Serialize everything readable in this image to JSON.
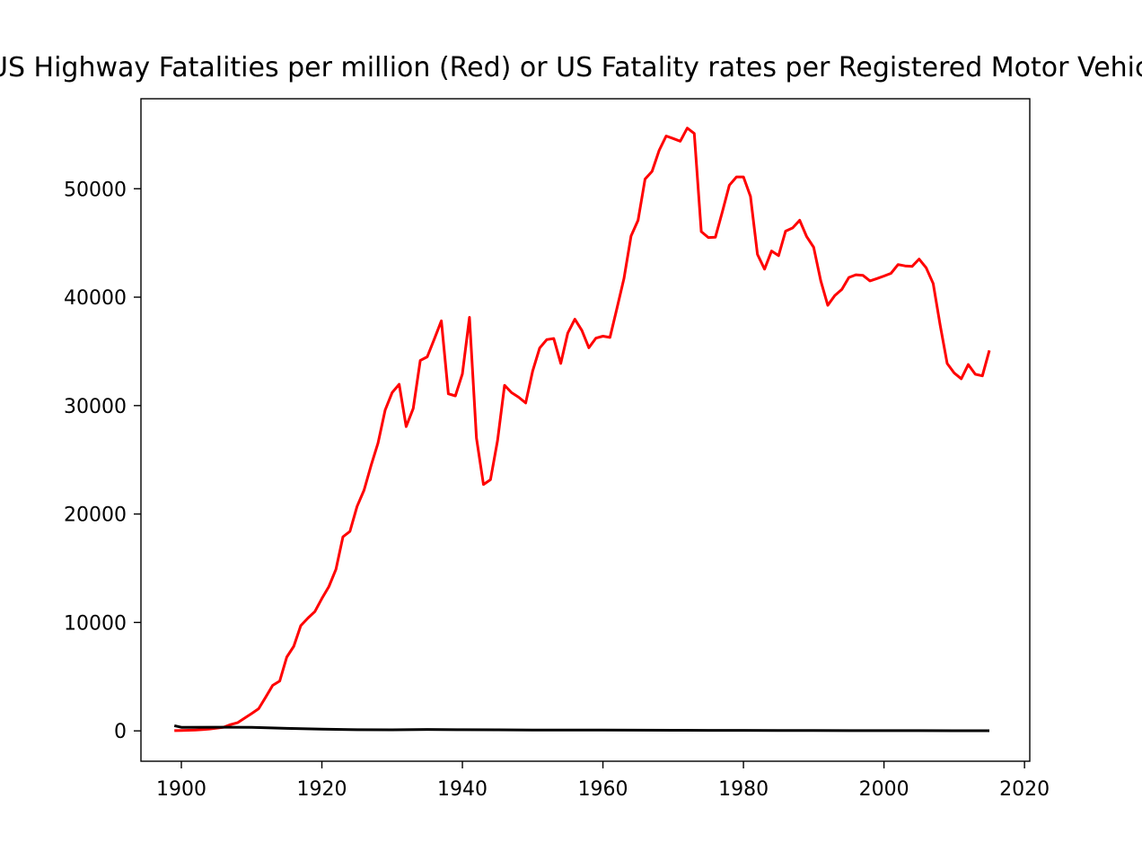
{
  "chart_data": {
    "type": "line",
    "title": "US Highway Fatalities per million (Red) or US Fatality rates per Registered Motor Vehicle (Black)",
    "xlim": [
      1894.25,
      2020.75
    ],
    "ylim": [
      -2800,
      58300
    ],
    "xticks": [
      1900,
      1920,
      1940,
      1960,
      1980,
      2000,
      2020
    ],
    "yticks": [
      0,
      10000,
      20000,
      30000,
      40000,
      50000
    ],
    "grid": false,
    "series": [
      {
        "color": "#ff0000",
        "x": [
          1899,
          1900,
          1901,
          1902,
          1903,
          1904,
          1905,
          1906,
          1907,
          1908,
          1909,
          1910,
          1911,
          1912,
          1913,
          1914,
          1915,
          1916,
          1917,
          1918,
          1919,
          1920,
          1921,
          1922,
          1923,
          1924,
          1925,
          1926,
          1927,
          1928,
          1929,
          1930,
          1931,
          1932,
          1933,
          1934,
          1935,
          1936,
          1937,
          1938,
          1939,
          1940,
          1941,
          1942,
          1943,
          1944,
          1945,
          1946,
          1947,
          1948,
          1949,
          1950,
          1951,
          1952,
          1953,
          1954,
          1955,
          1956,
          1957,
          1958,
          1959,
          1960,
          1961,
          1962,
          1963,
          1964,
          1965,
          1966,
          1967,
          1968,
          1969,
          1970,
          1971,
          1972,
          1973,
          1974,
          1975,
          1976,
          1977,
          1978,
          1979,
          1980,
          1981,
          1982,
          1983,
          1984,
          1985,
          1986,
          1987,
          1988,
          1989,
          1990,
          1991,
          1992,
          1993,
          1994,
          1995,
          1996,
          1997,
          1998,
          1999,
          2000,
          2001,
          2002,
          2003,
          2004,
          2005,
          2006,
          2007,
          2008,
          2009,
          2010,
          2011,
          2012,
          2013,
          2014,
          2015
        ],
        "values": [
          26,
          36,
          54,
          79,
          117,
          172,
          252,
          338,
          581,
          751,
          1174,
          1599,
          2043,
          3100,
          4200,
          4600,
          6800,
          7800,
          9700,
          10400,
          11000,
          12200,
          13300,
          14900,
          17900,
          18400,
          20700,
          22200,
          24470,
          26557,
          29592,
          31204,
          31963,
          28064,
          29746,
          34154,
          34494,
          36126,
          37819,
          31083,
          30895,
          32914,
          38142,
          27007,
          22727,
          23165,
          26785,
          31874,
          31193,
          30775,
          30246,
          33186,
          35309,
          36088,
          36190,
          33890,
          36688,
          37965,
          36932,
          35331,
          36223,
          36399,
          36285,
          38980,
          41723,
          45645,
          47089,
          50894,
          51603,
          53543,
          54862,
          54633,
          54381,
          55596,
          55096,
          46049,
          45500,
          45523,
          47878,
          50331,
          51093,
          51091,
          49301,
          43945,
          42589,
          44257,
          43825,
          46087,
          46390,
          47087,
          45582,
          44599,
          41508,
          39250,
          40150,
          40716,
          41817,
          42065,
          42013,
          41501,
          41717,
          41945,
          42196,
          43005,
          42884,
          42836,
          43510,
          42708,
          41259,
          37423,
          33883,
          32999,
          32479,
          33782,
          32893,
          32744,
          35092
        ]
      },
      {
        "color": "#000000",
        "x": [
          1899,
          1900,
          1905,
          1910,
          1915,
          1920,
          1925,
          1930,
          1935,
          1940,
          1945,
          1950,
          1955,
          1960,
          1965,
          1970,
          1975,
          1980,
          1985,
          1990,
          1995,
          2000,
          2005,
          2010,
          2015
        ],
        "values": [
          480,
          330,
          340,
          330,
          230,
          160,
          110,
          100,
          130,
          110,
          100,
          80,
          75,
          70,
          65,
          60,
          50,
          45,
          40,
          30,
          25,
          22,
          20,
          15,
          12
        ]
      }
    ]
  }
}
